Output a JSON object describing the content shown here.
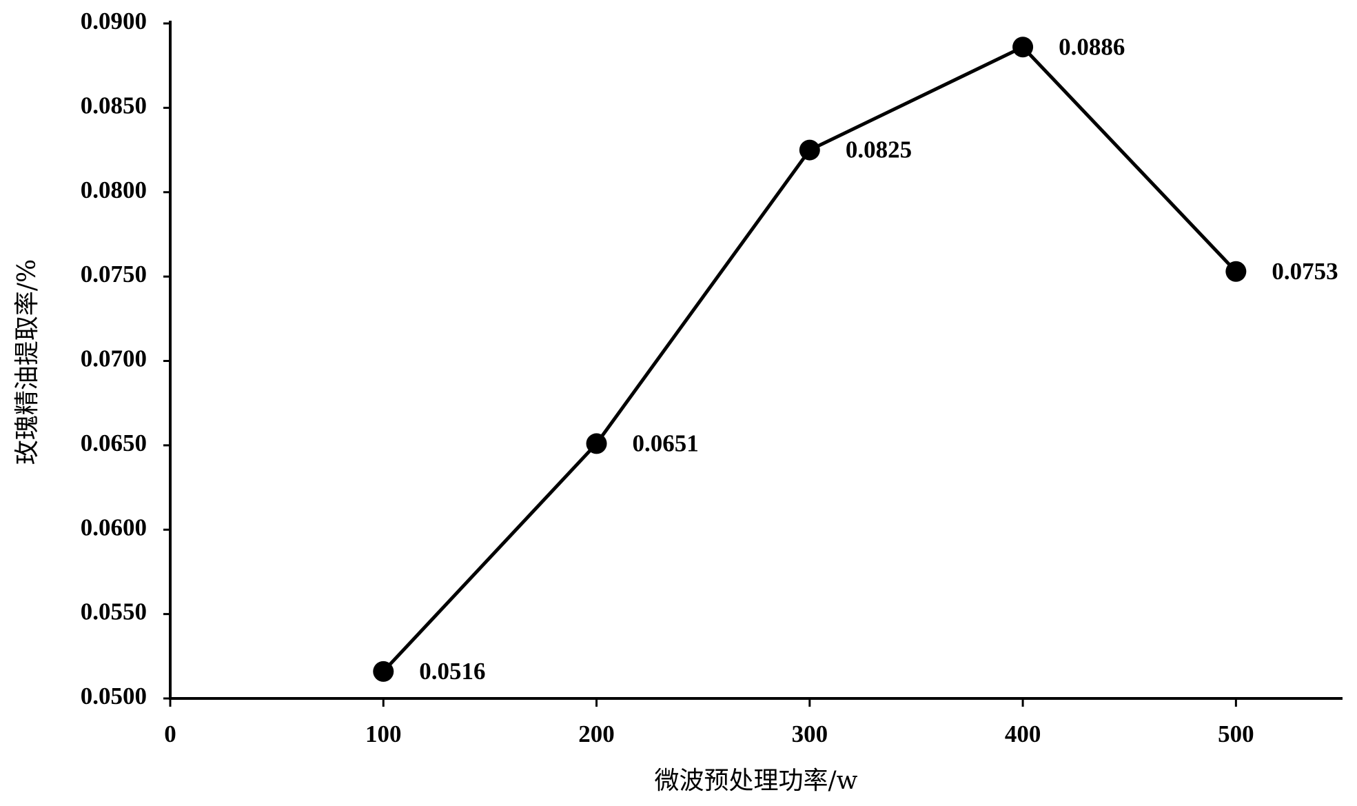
{
  "chart_data": {
    "type": "line",
    "x_label": "微波预处理功率/w",
    "y_label": "玫瑰精油提取率/%",
    "x": [
      100,
      200,
      300,
      400,
      500
    ],
    "values": [
      0.0516,
      0.0651,
      0.0825,
      0.0886,
      0.0753
    ],
    "color": "#000000",
    "xlim": [
      0,
      550
    ],
    "xticks": [
      0,
      100,
      200,
      300,
      400,
      500
    ],
    "ylim": [
      0.05,
      0.09
    ],
    "yticks": [
      {
        "value": 0.05,
        "label": "0.0500"
      },
      {
        "value": 0.055,
        "label": "0.0550"
      },
      {
        "value": 0.06,
        "label": "0.0600"
      },
      {
        "value": 0.065,
        "label": "0.0650"
      },
      {
        "value": 0.07,
        "label": "0.0700"
      },
      {
        "value": 0.075,
        "label": "0.0750"
      },
      {
        "value": 0.08,
        "label": "0.0800"
      },
      {
        "value": 0.085,
        "label": "0.0850"
      },
      {
        "value": 0.09,
        "label": "0.0900"
      }
    ],
    "grid": false
  }
}
